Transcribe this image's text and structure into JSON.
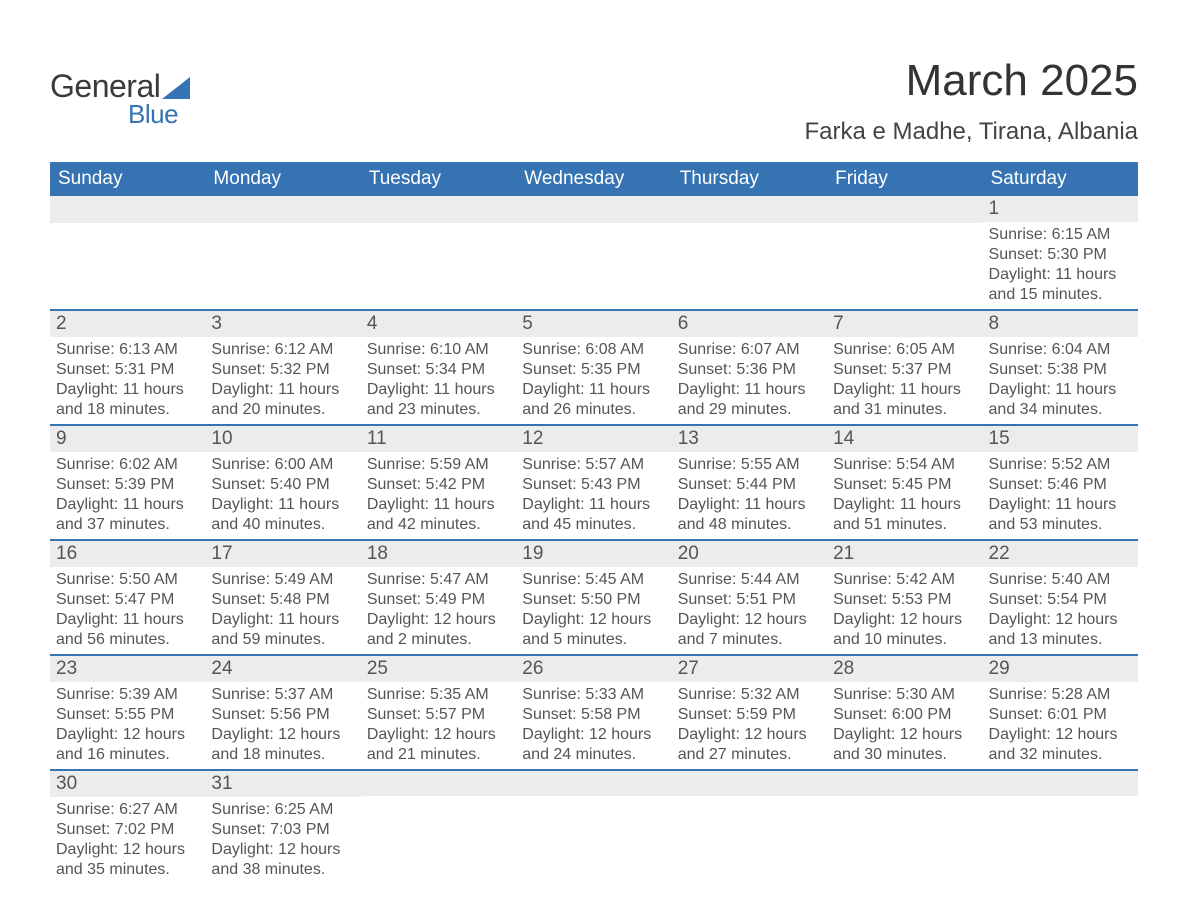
{
  "brand": {
    "word1": "General",
    "word2": "Blue"
  },
  "title": "March 2025",
  "location": "Farka e Madhe, Tirana, Albania",
  "colors": {
    "header_bg": "#3573b3",
    "header_text": "#ffffff",
    "daynum_bg": "#ececec",
    "row_border": "#3573b3",
    "body_text": "#555555",
    "title_text": "#333333",
    "page_bg": "#ffffff"
  },
  "typography": {
    "title_fontsize": 44,
    "location_fontsize": 24,
    "header_fontsize": 19,
    "daynum_fontsize": 19,
    "content_fontsize": 16
  },
  "day_headers": [
    "Sunday",
    "Monday",
    "Tuesday",
    "Wednesday",
    "Thursday",
    "Friday",
    "Saturday"
  ],
  "weeks": [
    [
      null,
      null,
      null,
      null,
      null,
      null,
      {
        "n": "1",
        "sunrise": "6:15 AM",
        "sunset": "5:30 PM",
        "daylight": "11 hours and 15 minutes."
      }
    ],
    [
      {
        "n": "2",
        "sunrise": "6:13 AM",
        "sunset": "5:31 PM",
        "daylight": "11 hours and 18 minutes."
      },
      {
        "n": "3",
        "sunrise": "6:12 AM",
        "sunset": "5:32 PM",
        "daylight": "11 hours and 20 minutes."
      },
      {
        "n": "4",
        "sunrise": "6:10 AM",
        "sunset": "5:34 PM",
        "daylight": "11 hours and 23 minutes."
      },
      {
        "n": "5",
        "sunrise": "6:08 AM",
        "sunset": "5:35 PM",
        "daylight": "11 hours and 26 minutes."
      },
      {
        "n": "6",
        "sunrise": "6:07 AM",
        "sunset": "5:36 PM",
        "daylight": "11 hours and 29 minutes."
      },
      {
        "n": "7",
        "sunrise": "6:05 AM",
        "sunset": "5:37 PM",
        "daylight": "11 hours and 31 minutes."
      },
      {
        "n": "8",
        "sunrise": "6:04 AM",
        "sunset": "5:38 PM",
        "daylight": "11 hours and 34 minutes."
      }
    ],
    [
      {
        "n": "9",
        "sunrise": "6:02 AM",
        "sunset": "5:39 PM",
        "daylight": "11 hours and 37 minutes."
      },
      {
        "n": "10",
        "sunrise": "6:00 AM",
        "sunset": "5:40 PM",
        "daylight": "11 hours and 40 minutes."
      },
      {
        "n": "11",
        "sunrise": "5:59 AM",
        "sunset": "5:42 PM",
        "daylight": "11 hours and 42 minutes."
      },
      {
        "n": "12",
        "sunrise": "5:57 AM",
        "sunset": "5:43 PM",
        "daylight": "11 hours and 45 minutes."
      },
      {
        "n": "13",
        "sunrise": "5:55 AM",
        "sunset": "5:44 PM",
        "daylight": "11 hours and 48 minutes."
      },
      {
        "n": "14",
        "sunrise": "5:54 AM",
        "sunset": "5:45 PM",
        "daylight": "11 hours and 51 minutes."
      },
      {
        "n": "15",
        "sunrise": "5:52 AM",
        "sunset": "5:46 PM",
        "daylight": "11 hours and 53 minutes."
      }
    ],
    [
      {
        "n": "16",
        "sunrise": "5:50 AM",
        "sunset": "5:47 PM",
        "daylight": "11 hours and 56 minutes."
      },
      {
        "n": "17",
        "sunrise": "5:49 AM",
        "sunset": "5:48 PM",
        "daylight": "11 hours and 59 minutes."
      },
      {
        "n": "18",
        "sunrise": "5:47 AM",
        "sunset": "5:49 PM",
        "daylight": "12 hours and 2 minutes."
      },
      {
        "n": "19",
        "sunrise": "5:45 AM",
        "sunset": "5:50 PM",
        "daylight": "12 hours and 5 minutes."
      },
      {
        "n": "20",
        "sunrise": "5:44 AM",
        "sunset": "5:51 PM",
        "daylight": "12 hours and 7 minutes."
      },
      {
        "n": "21",
        "sunrise": "5:42 AM",
        "sunset": "5:53 PM",
        "daylight": "12 hours and 10 minutes."
      },
      {
        "n": "22",
        "sunrise": "5:40 AM",
        "sunset": "5:54 PM",
        "daylight": "12 hours and 13 minutes."
      }
    ],
    [
      {
        "n": "23",
        "sunrise": "5:39 AM",
        "sunset": "5:55 PM",
        "daylight": "12 hours and 16 minutes."
      },
      {
        "n": "24",
        "sunrise": "5:37 AM",
        "sunset": "5:56 PM",
        "daylight": "12 hours and 18 minutes."
      },
      {
        "n": "25",
        "sunrise": "5:35 AM",
        "sunset": "5:57 PM",
        "daylight": "12 hours and 21 minutes."
      },
      {
        "n": "26",
        "sunrise": "5:33 AM",
        "sunset": "5:58 PM",
        "daylight": "12 hours and 24 minutes."
      },
      {
        "n": "27",
        "sunrise": "5:32 AM",
        "sunset": "5:59 PM",
        "daylight": "12 hours and 27 minutes."
      },
      {
        "n": "28",
        "sunrise": "5:30 AM",
        "sunset": "6:00 PM",
        "daylight": "12 hours and 30 minutes."
      },
      {
        "n": "29",
        "sunrise": "5:28 AM",
        "sunset": "6:01 PM",
        "daylight": "12 hours and 32 minutes."
      }
    ],
    [
      {
        "n": "30",
        "sunrise": "6:27 AM",
        "sunset": "7:02 PM",
        "daylight": "12 hours and 35 minutes."
      },
      {
        "n": "31",
        "sunrise": "6:25 AM",
        "sunset": "7:03 PM",
        "daylight": "12 hours and 38 minutes."
      },
      null,
      null,
      null,
      null,
      null
    ]
  ],
  "labels": {
    "sunrise_prefix": "Sunrise: ",
    "sunset_prefix": "Sunset: ",
    "daylight_prefix": "Daylight: "
  }
}
